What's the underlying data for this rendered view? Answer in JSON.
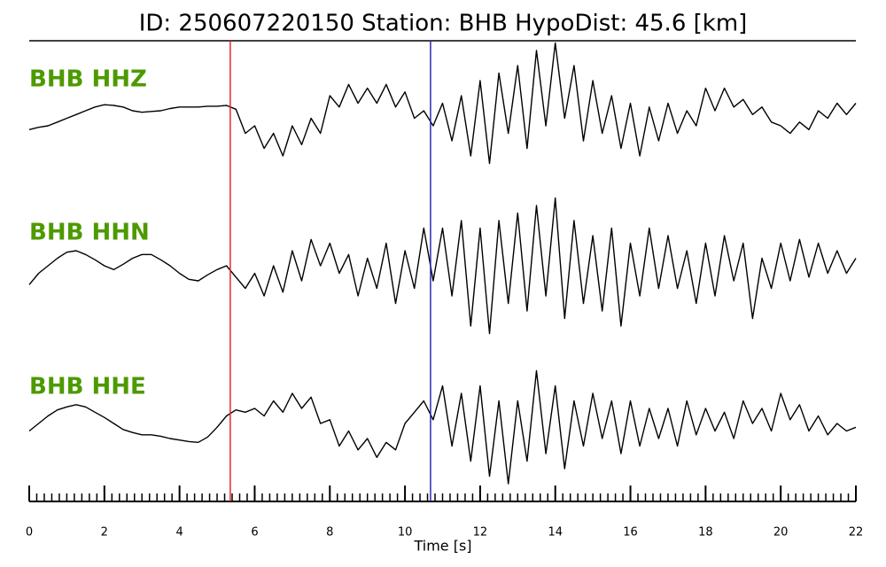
{
  "chart_data": {
    "type": "waveform",
    "title": "ID: 250607220150   Station: BHB   HypoDist:    45.6 [km]",
    "xlabel": "Time [s]",
    "xlim": [
      0,
      22
    ],
    "xticks": [
      0,
      2,
      4,
      6,
      8,
      10,
      12,
      14,
      16,
      18,
      20,
      22
    ],
    "xminor_step": 0.2,
    "label_color": "#4c9a00",
    "line_color": "#000000",
    "markers": [
      {
        "x": 5.35,
        "color": "#e8262b"
      },
      {
        "x": 10.68,
        "color": "#2a2ab0"
      }
    ],
    "x": [
      0,
      0.25,
      0.5,
      0.75,
      1,
      1.25,
      1.5,
      1.75,
      2,
      2.25,
      2.5,
      2.75,
      3,
      3.25,
      3.5,
      3.75,
      4,
      4.25,
      4.5,
      4.75,
      5,
      5.25,
      5.5,
      5.75,
      6,
      6.25,
      6.5,
      6.75,
      7,
      7.25,
      7.5,
      7.75,
      8,
      8.25,
      8.5,
      8.75,
      9,
      9.25,
      9.5,
      9.75,
      10,
      10.25,
      10.5,
      10.75,
      11,
      11.25,
      11.5,
      11.75,
      12,
      12.25,
      12.5,
      12.75,
      13,
      13.25,
      13.5,
      13.75,
      14,
      14.25,
      14.5,
      14.75,
      15,
      15.25,
      15.5,
      15.75,
      16,
      16.25,
      16.5,
      16.75,
      17,
      17.25,
      17.5,
      17.75,
      18,
      18.25,
      18.5,
      18.75,
      19,
      19.25,
      19.5,
      19.75,
      20,
      20.25,
      20.5,
      20.75,
      21,
      21.25,
      21.5,
      21.75,
      22
    ],
    "series": [
      {
        "name": "BHB HHZ",
        "values": [
          -0.25,
          -0.22,
          -0.2,
          -0.15,
          -0.1,
          -0.05,
          0.0,
          0.05,
          0.08,
          0.07,
          0.05,
          0.0,
          -0.02,
          -0.01,
          0.0,
          0.03,
          0.05,
          0.05,
          0.05,
          0.06,
          0.06,
          0.07,
          0.02,
          -0.3,
          -0.2,
          -0.5,
          -0.3,
          -0.6,
          -0.2,
          -0.45,
          -0.1,
          -0.3,
          0.2,
          0.05,
          0.35,
          0.1,
          0.3,
          0.1,
          0.35,
          0.05,
          0.25,
          -0.1,
          0.0,
          -0.2,
          0.1,
          -0.4,
          0.2,
          -0.6,
          0.4,
          -0.7,
          0.5,
          -0.3,
          0.6,
          -0.5,
          0.8,
          -0.2,
          0.9,
          -0.1,
          0.6,
          -0.4,
          0.4,
          -0.3,
          0.2,
          -0.5,
          0.1,
          -0.6,
          0.05,
          -0.4,
          0.1,
          -0.3,
          0.0,
          -0.2,
          0.3,
          0.0,
          0.3,
          0.05,
          0.15,
          -0.05,
          0.05,
          -0.15,
          -0.2,
          -0.3,
          -0.15,
          -0.25,
          0.0,
          -0.1,
          0.1,
          -0.05,
          0.1
        ]
      },
      {
        "name": "BHB HHN",
        "values": [
          -0.25,
          -0.1,
          0.0,
          0.1,
          0.18,
          0.2,
          0.15,
          0.08,
          0.0,
          -0.05,
          0.02,
          0.1,
          0.15,
          0.15,
          0.08,
          0.0,
          -0.1,
          -0.18,
          -0.2,
          -0.12,
          -0.05,
          0.0,
          -0.15,
          -0.3,
          -0.1,
          -0.4,
          0.0,
          -0.35,
          0.2,
          -0.2,
          0.35,
          0.0,
          0.3,
          -0.1,
          0.15,
          -0.4,
          0.1,
          -0.3,
          0.3,
          -0.5,
          0.2,
          -0.3,
          0.5,
          -0.2,
          0.5,
          -0.4,
          0.6,
          -0.8,
          0.5,
          -0.9,
          0.6,
          -0.5,
          0.7,
          -0.6,
          0.8,
          -0.4,
          0.9,
          -0.7,
          0.6,
          -0.5,
          0.4,
          -0.6,
          0.5,
          -0.8,
          0.3,
          -0.4,
          0.5,
          -0.3,
          0.4,
          -0.3,
          0.2,
          -0.5,
          0.3,
          -0.4,
          0.4,
          -0.2,
          0.3,
          -0.7,
          0.1,
          -0.3,
          0.3,
          -0.2,
          0.35,
          -0.15,
          0.3,
          -0.1,
          0.2,
          -0.1,
          0.1
        ]
      },
      {
        "name": "BHB HHE",
        "values": [
          -0.1,
          0.0,
          0.1,
          0.18,
          0.22,
          0.25,
          0.22,
          0.15,
          0.08,
          0.0,
          -0.08,
          -0.12,
          -0.15,
          -0.15,
          -0.17,
          -0.2,
          -0.22,
          -0.24,
          -0.25,
          -0.18,
          -0.05,
          0.1,
          0.18,
          0.15,
          0.2,
          0.1,
          0.3,
          0.15,
          0.4,
          0.2,
          0.35,
          0.0,
          0.05,
          -0.3,
          -0.1,
          -0.35,
          -0.2,
          -0.45,
          -0.25,
          -0.35,
          0.0,
          0.15,
          0.3,
          0.05,
          0.5,
          -0.3,
          0.4,
          -0.5,
          0.5,
          -0.7,
          0.3,
          -0.8,
          0.3,
          -0.5,
          0.7,
          -0.4,
          0.5,
          -0.6,
          0.3,
          -0.3,
          0.4,
          -0.2,
          0.3,
          -0.4,
          0.3,
          -0.3,
          0.2,
          -0.2,
          0.2,
          -0.3,
          0.3,
          -0.15,
          0.2,
          -0.1,
          0.15,
          -0.2,
          0.3,
          0.0,
          0.2,
          -0.1,
          0.4,
          0.05,
          0.25,
          -0.1,
          0.1,
          -0.15,
          0.0,
          -0.1,
          -0.05
        ]
      }
    ]
  }
}
